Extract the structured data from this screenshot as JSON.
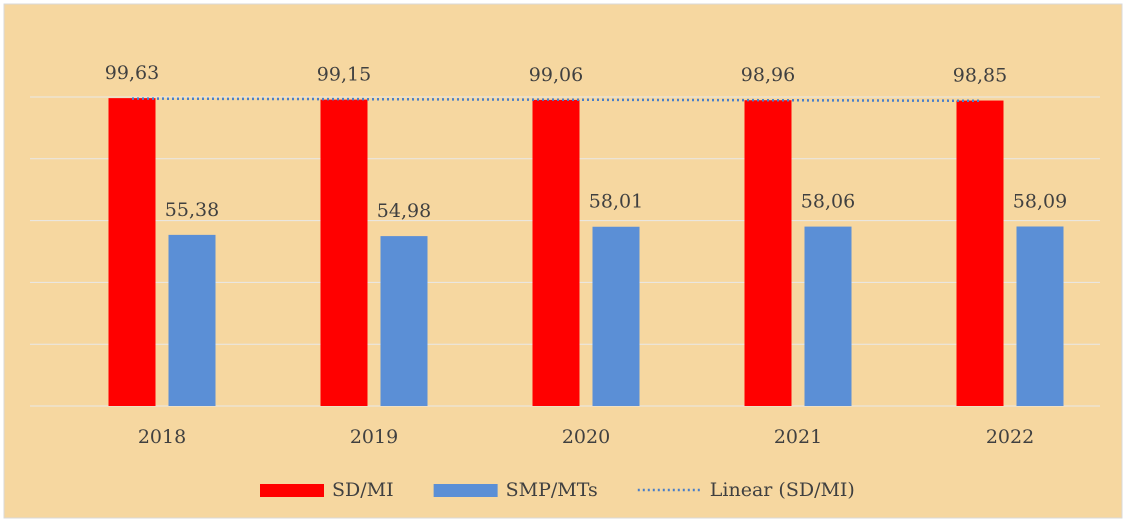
{
  "chart_data": {
    "type": "bar",
    "categories": [
      "2018",
      "2019",
      "2020",
      "2021",
      "2022"
    ],
    "series": [
      {
        "name": "SD/MI",
        "color": "#ff0000",
        "values": [
          99.63,
          99.15,
          99.06,
          98.96,
          98.85
        ],
        "value_labels": [
          "99,63",
          "99,15",
          "99,06",
          "98,96",
          "98,85"
        ]
      },
      {
        "name": "SMP/MTs",
        "color": "#5b8fd6",
        "values": [
          55.38,
          54.98,
          58.01,
          58.06,
          58.09
        ],
        "value_labels": [
          "55,38",
          "54,98",
          "58,01",
          "58,06",
          "58,09"
        ]
      },
      {
        "name": "Linear (SD/MI)",
        "type": "line",
        "style": "dotted",
        "color": "#4a7fc8",
        "values": [
          99.48,
          99.31,
          99.13,
          98.96,
          98.78
        ]
      }
    ],
    "ylim": [
      0,
      100
    ],
    "yticks": [
      0,
      20,
      40,
      60,
      80,
      100
    ],
    "grid": true,
    "legend": "bottom"
  }
}
